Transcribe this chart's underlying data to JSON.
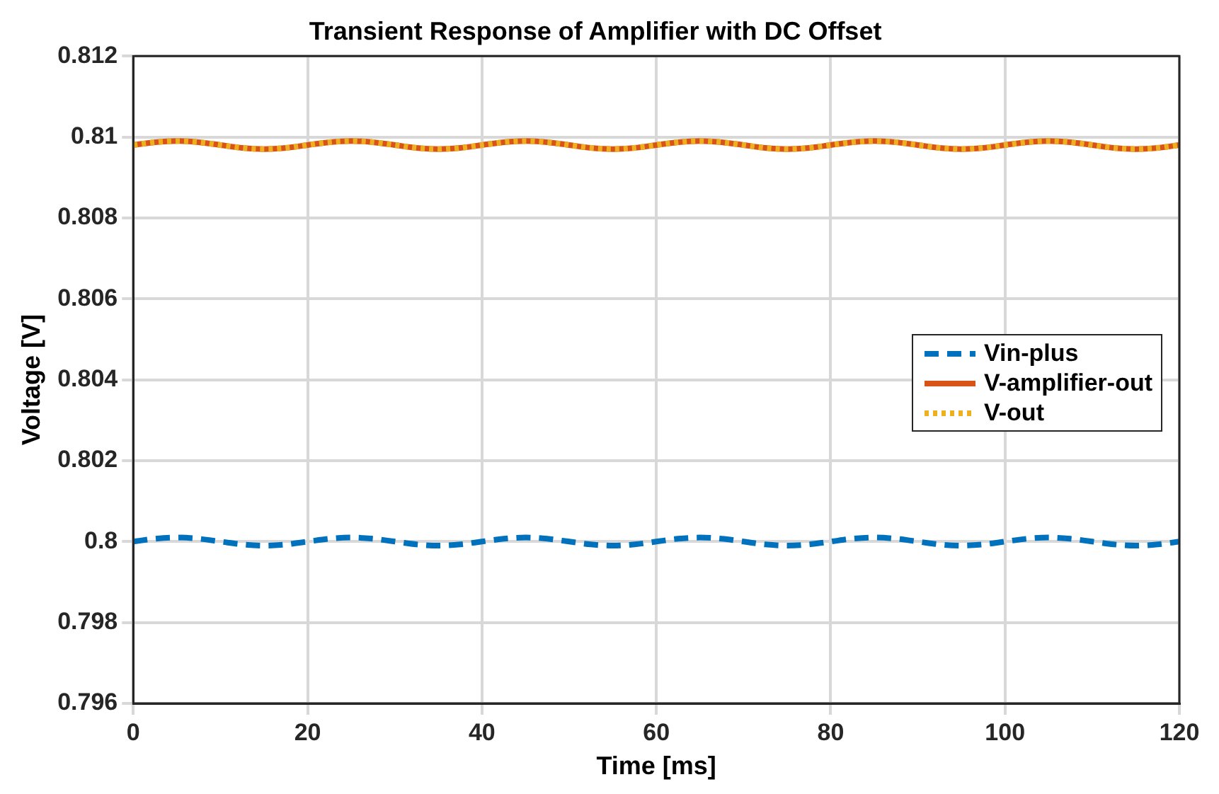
{
  "chart_data": {
    "type": "line",
    "title": "Transient Response of Amplifier with DC Offset",
    "xlabel": "Time [ms]",
    "ylabel": "Voltage [V]",
    "x": [
      0,
      2.5,
      5,
      7.5,
      10,
      12.5,
      15,
      17.5,
      20,
      22.5,
      25,
      27.5,
      30,
      32.5,
      35,
      37.5,
      40,
      42.5,
      45,
      47.5,
      50,
      52.5,
      55,
      57.5,
      60,
      62.5,
      65,
      67.5,
      70,
      72.5,
      75,
      77.5,
      80,
      82.5,
      85,
      87.5,
      90,
      92.5,
      95,
      97.5,
      100,
      102.5,
      105,
      107.5,
      110,
      112.5,
      115,
      117.5,
      120
    ],
    "series": [
      {
        "name": "Vin-plus",
        "color": "#0072bd",
        "line_style": "dashed",
        "values": [
          0.8,
          0.80007,
          0.8001,
          0.80007,
          0.8,
          0.79993,
          0.7999,
          0.79993,
          0.8,
          0.80007,
          0.8001,
          0.80007,
          0.8,
          0.79993,
          0.7999,
          0.79993,
          0.8,
          0.80007,
          0.8001,
          0.80007,
          0.8,
          0.79993,
          0.7999,
          0.79993,
          0.8,
          0.80007,
          0.8001,
          0.80007,
          0.8,
          0.79993,
          0.7999,
          0.79993,
          0.8,
          0.80007,
          0.8001,
          0.80007,
          0.8,
          0.79993,
          0.7999,
          0.79993,
          0.8,
          0.80007,
          0.8001,
          0.80007,
          0.8,
          0.79993,
          0.7999,
          0.79993,
          0.8
        ]
      },
      {
        "name": "V-amplifier-out",
        "color": "#d95319",
        "line_style": "solid",
        "values": [
          0.8098,
          0.80987,
          0.8099,
          0.80987,
          0.8098,
          0.80973,
          0.8097,
          0.80973,
          0.8098,
          0.80987,
          0.8099,
          0.80987,
          0.8098,
          0.80973,
          0.8097,
          0.80973,
          0.8098,
          0.80987,
          0.8099,
          0.80987,
          0.8098,
          0.80973,
          0.8097,
          0.80973,
          0.8098,
          0.80987,
          0.8099,
          0.80987,
          0.8098,
          0.80973,
          0.8097,
          0.80973,
          0.8098,
          0.80987,
          0.8099,
          0.80987,
          0.8098,
          0.80973,
          0.8097,
          0.80973,
          0.8098,
          0.80987,
          0.8099,
          0.80987,
          0.8098,
          0.80973,
          0.8097,
          0.80973,
          0.8098
        ]
      },
      {
        "name": "V-out",
        "color": "#edb120",
        "line_style": "dotted",
        "values": [
          0.8098,
          0.80987,
          0.8099,
          0.80987,
          0.8098,
          0.80973,
          0.8097,
          0.80973,
          0.8098,
          0.80987,
          0.8099,
          0.80987,
          0.8098,
          0.80973,
          0.8097,
          0.80973,
          0.8098,
          0.80987,
          0.8099,
          0.80987,
          0.8098,
          0.80973,
          0.8097,
          0.80973,
          0.8098,
          0.80987,
          0.8099,
          0.80987,
          0.8098,
          0.80973,
          0.8097,
          0.80973,
          0.8098,
          0.80987,
          0.8099,
          0.80987,
          0.8098,
          0.80973,
          0.8097,
          0.80973,
          0.8098,
          0.80987,
          0.8099,
          0.80987,
          0.8098,
          0.80973,
          0.8097,
          0.80973,
          0.8098
        ]
      }
    ],
    "xlim": [
      0,
      120
    ],
    "xticks": [
      0,
      20,
      40,
      60,
      80,
      100,
      120
    ],
    "ylim": [
      0.796,
      0.812
    ],
    "yticks": [
      0.796,
      0.798,
      0.8,
      0.802,
      0.804,
      0.806,
      0.808,
      0.81,
      0.812
    ],
    "grid": true,
    "legend": "right",
    "marker": "none"
  }
}
